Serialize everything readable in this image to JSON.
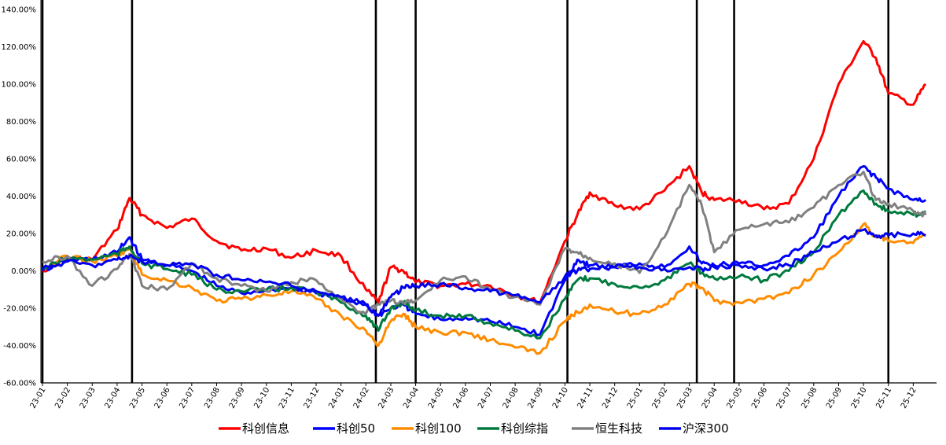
{
  "chart_data": {
    "type": "line",
    "x_ticks": [
      "23-01",
      "23-02",
      "23-03",
      "23-04",
      "23-05",
      "23-06",
      "23-07",
      "23-08",
      "23-09",
      "23-10",
      "23-11",
      "23-12",
      "24-01",
      "24-02",
      "24-03",
      "24-04",
      "24-05",
      "24-06",
      "24-07",
      "24-08",
      "24-09",
      "24-10",
      "24-11",
      "24-12",
      "25-01",
      "25-02",
      "25-03",
      "25-04",
      "25-05",
      "25-06",
      "25-07",
      "25-08",
      "25-09",
      "25-10",
      "25-11",
      "25-12"
    ],
    "y_ticks": [
      "140.00%",
      "120.00%",
      "100.00%",
      "80.00%",
      "60.00%",
      "40.00%",
      "20.00%",
      "0.00%",
      "-20.00%",
      "-40.00%",
      "-60.00%"
    ],
    "ylim": [
      -60,
      140
    ],
    "y_unit": "%",
    "grid": false,
    "legend_position": "bottom",
    "markers": {
      "type": "vertical-lines",
      "x": [
        "23-01",
        "23-04",
        "24-02",
        "24-03",
        "24-09",
        "25-03",
        "25-04",
        "25-10"
      ],
      "color": "#000000"
    },
    "series": [
      {
        "name": "科创信息",
        "color": "#FF0000",
        "points": [
          [
            "23-01",
            0
          ],
          [
            "23-02",
            7
          ],
          [
            "23-03",
            6
          ],
          [
            "23-04",
            22
          ],
          [
            "23-04",
            39
          ],
          [
            "23-05",
            30
          ],
          [
            "23-06",
            23
          ],
          [
            "23-07",
            28
          ],
          [
            "23-08",
            16
          ],
          [
            "23-09",
            11
          ],
          [
            "23-10",
            12
          ],
          [
            "23-11",
            7
          ],
          [
            "23-12",
            11
          ],
          [
            "24-01",
            8
          ],
          [
            "24-02",
            -10
          ],
          [
            "24-02",
            -17
          ],
          [
            "24-03",
            2
          ],
          [
            "24-03",
            0
          ],
          [
            "24-04",
            -6
          ],
          [
            "24-05",
            -8
          ],
          [
            "24-06",
            -7
          ],
          [
            "24-07",
            -8
          ],
          [
            "24-08",
            -13
          ],
          [
            "24-09",
            -17
          ],
          [
            "24-10",
            16
          ],
          [
            "24-10",
            30
          ],
          [
            "24-11",
            42
          ],
          [
            "24-12",
            35
          ],
          [
            "25-01",
            33
          ],
          [
            "25-02",
            43
          ],
          [
            "25-03",
            56
          ],
          [
            "25-03",
            42
          ],
          [
            "25-04",
            38
          ],
          [
            "25-05",
            38
          ],
          [
            "25-06",
            33
          ],
          [
            "25-07",
            36
          ],
          [
            "25-08",
            60
          ],
          [
            "25-09",
            100
          ],
          [
            "25-10",
            123
          ],
          [
            "25-10",
            114
          ],
          [
            "25-11",
            95
          ],
          [
            "25-12",
            89
          ],
          [
            "25-12",
            100
          ]
        ]
      },
      {
        "name": "科创50",
        "color": "#0000FF",
        "points": [
          [
            "23-01",
            0
          ],
          [
            "23-02",
            6
          ],
          [
            "23-03",
            6
          ],
          [
            "23-04",
            10
          ],
          [
            "23-04",
            18
          ],
          [
            "23-05",
            6
          ],
          [
            "23-06",
            3
          ],
          [
            "23-07",
            0
          ],
          [
            "23-08",
            -8
          ],
          [
            "23-09",
            -12
          ],
          [
            "23-10",
            -10
          ],
          [
            "23-11",
            -9
          ],
          [
            "23-12",
            -12
          ],
          [
            "24-01",
            -15
          ],
          [
            "24-02",
            -18
          ],
          [
            "24-02",
            -24
          ],
          [
            "24-03",
            -20
          ],
          [
            "24-03",
            -18
          ],
          [
            "24-04",
            -23
          ],
          [
            "24-05",
            -26
          ],
          [
            "24-06",
            -25
          ],
          [
            "24-07",
            -27
          ],
          [
            "24-08",
            -30
          ],
          [
            "24-09",
            -34
          ],
          [
            "24-10",
            -5
          ],
          [
            "24-10",
            6
          ],
          [
            "24-11",
            3
          ],
          [
            "24-12",
            2
          ],
          [
            "25-01",
            4
          ],
          [
            "25-02",
            2
          ],
          [
            "25-03",
            13
          ],
          [
            "25-03",
            4
          ],
          [
            "25-04",
            3
          ],
          [
            "25-05",
            4
          ],
          [
            "25-06",
            3
          ],
          [
            "25-07",
            8
          ],
          [
            "25-08",
            18
          ],
          [
            "25-09",
            40
          ],
          [
            "25-10",
            56
          ],
          [
            "25-10",
            50
          ],
          [
            "25-11",
            44
          ],
          [
            "25-12",
            38
          ],
          [
            "25-12",
            38
          ]
        ]
      },
      {
        "name": "科创100",
        "color": "#FF8C00",
        "points": [
          [
            "23-01",
            1
          ],
          [
            "23-02",
            8
          ],
          [
            "23-03",
            5
          ],
          [
            "23-04",
            8
          ],
          [
            "23-04",
            12
          ],
          [
            "23-05",
            -2
          ],
          [
            "23-06",
            -5
          ],
          [
            "23-07",
            -9
          ],
          [
            "23-08",
            -16
          ],
          [
            "23-09",
            -15
          ],
          [
            "23-10",
            -13
          ],
          [
            "23-11",
            -11
          ],
          [
            "23-12",
            -15
          ],
          [
            "24-01",
            -24
          ],
          [
            "24-02",
            -32
          ],
          [
            "24-02",
            -40
          ],
          [
            "24-03",
            -27
          ],
          [
            "24-03",
            -23
          ],
          [
            "24-04",
            -30
          ],
          [
            "24-05",
            -33
          ],
          [
            "24-06",
            -33
          ],
          [
            "24-07",
            -37
          ],
          [
            "24-08",
            -41
          ],
          [
            "24-09",
            -44
          ],
          [
            "24-10",
            -27
          ],
          [
            "24-10",
            -22
          ],
          [
            "24-11",
            -18
          ],
          [
            "24-12",
            -22
          ],
          [
            "25-01",
            -23
          ],
          [
            "25-02",
            -18
          ],
          [
            "25-03",
            -7
          ],
          [
            "25-03",
            -9
          ],
          [
            "25-04",
            -16
          ],
          [
            "25-05",
            -17
          ],
          [
            "25-06",
            -15
          ],
          [
            "25-07",
            -12
          ],
          [
            "25-08",
            -2
          ],
          [
            "25-09",
            10
          ],
          [
            "25-10",
            25
          ],
          [
            "25-10",
            18
          ],
          [
            "25-11",
            16
          ],
          [
            "25-12",
            15
          ],
          [
            "25-12",
            19
          ]
        ]
      },
      {
        "name": "科创综指",
        "color": "#007A3D",
        "points": [
          [
            "23-01",
            1
          ],
          [
            "23-02",
            7
          ],
          [
            "23-03",
            6
          ],
          [
            "23-04",
            9
          ],
          [
            "23-04",
            13
          ],
          [
            "23-05",
            4
          ],
          [
            "23-06",
            1
          ],
          [
            "23-07",
            -2
          ],
          [
            "23-08",
            -10
          ],
          [
            "23-09",
            -11
          ],
          [
            "23-10",
            -10
          ],
          [
            "23-11",
            -9
          ],
          [
            "23-12",
            -11
          ],
          [
            "24-01",
            -17
          ],
          [
            "24-02",
            -24
          ],
          [
            "24-02",
            -32
          ],
          [
            "24-03",
            -20
          ],
          [
            "24-03",
            -17
          ],
          [
            "24-04",
            -21
          ],
          [
            "24-05",
            -24
          ],
          [
            "24-06",
            -24
          ],
          [
            "24-07",
            -28
          ],
          [
            "24-08",
            -32
          ],
          [
            "24-09",
            -36
          ],
          [
            "24-10",
            -15
          ],
          [
            "24-10",
            -5
          ],
          [
            "24-11",
            -4
          ],
          [
            "24-12",
            -7
          ],
          [
            "25-01",
            -9
          ],
          [
            "25-02",
            -5
          ],
          [
            "25-03",
            4
          ],
          [
            "25-03",
            -1
          ],
          [
            "25-04",
            -4
          ],
          [
            "25-05",
            -3
          ],
          [
            "25-06",
            -5
          ],
          [
            "25-07",
            0
          ],
          [
            "25-08",
            10
          ],
          [
            "25-09",
            30
          ],
          [
            "25-10",
            43
          ],
          [
            "25-10",
            36
          ],
          [
            "25-11",
            32
          ],
          [
            "25-12",
            30
          ],
          [
            "25-12",
            32
          ]
        ]
      },
      {
        "name": "恒生科技",
        "color": "#808080",
        "points": [
          [
            "23-01",
            5
          ],
          [
            "23-02",
            8
          ],
          [
            "23-03",
            -8
          ],
          [
            "23-04",
            1
          ],
          [
            "23-04",
            9
          ],
          [
            "23-05",
            -8
          ],
          [
            "23-06",
            -10
          ],
          [
            "23-07",
            4
          ],
          [
            "23-08",
            -4
          ],
          [
            "23-09",
            -8
          ],
          [
            "23-10",
            -11
          ],
          [
            "23-11",
            -6
          ],
          [
            "23-12",
            -5
          ],
          [
            "24-01",
            -15
          ],
          [
            "24-02",
            -23
          ],
          [
            "24-02",
            -18
          ],
          [
            "24-03",
            -16
          ],
          [
            "24-03",
            -17
          ],
          [
            "24-04",
            -16
          ],
          [
            "24-05",
            -5
          ],
          [
            "24-06",
            -3
          ],
          [
            "24-07",
            -10
          ],
          [
            "24-08",
            -14
          ],
          [
            "24-09",
            -18
          ],
          [
            "24-10",
            12
          ],
          [
            "24-10",
            10
          ],
          [
            "24-11",
            7
          ],
          [
            "24-12",
            4
          ],
          [
            "25-01",
            -1
          ],
          [
            "25-02",
            18
          ],
          [
            "25-03",
            46
          ],
          [
            "25-03",
            35
          ],
          [
            "25-04",
            10
          ],
          [
            "25-05",
            22
          ],
          [
            "25-06",
            25
          ],
          [
            "25-07",
            26
          ],
          [
            "25-08",
            34
          ],
          [
            "25-09",
            46
          ],
          [
            "25-10",
            53
          ],
          [
            "25-10",
            38
          ],
          [
            "25-11",
            36
          ],
          [
            "25-12",
            32
          ],
          [
            "25-12",
            30
          ]
        ]
      },
      {
        "name": "沪深300",
        "color": "#0000EE",
        "points": [
          [
            "23-01",
            1
          ],
          [
            "23-02",
            5
          ],
          [
            "23-03",
            3
          ],
          [
            "23-04",
            6
          ],
          [
            "23-04",
            8
          ],
          [
            "23-05",
            5
          ],
          [
            "23-06",
            3
          ],
          [
            "23-07",
            4
          ],
          [
            "23-08",
            -2
          ],
          [
            "23-09",
            -5
          ],
          [
            "23-10",
            -6
          ],
          [
            "23-11",
            -8
          ],
          [
            "23-12",
            -11
          ],
          [
            "24-01",
            -14
          ],
          [
            "24-02",
            -18
          ],
          [
            "24-02",
            -24
          ],
          [
            "24-03",
            -14
          ],
          [
            "24-03",
            -9
          ],
          [
            "24-04",
            -8
          ],
          [
            "24-05",
            -7
          ],
          [
            "24-06",
            -9
          ],
          [
            "24-07",
            -11
          ],
          [
            "24-08",
            -13
          ],
          [
            "24-09",
            -17
          ],
          [
            "24-10",
            -3
          ],
          [
            "24-10",
            0
          ],
          [
            "24-11",
            1
          ],
          [
            "24-12",
            2
          ],
          [
            "25-01",
            2
          ],
          [
            "25-02",
            1
          ],
          [
            "25-03",
            2
          ],
          [
            "25-03",
            1
          ],
          [
            "25-04",
            2
          ],
          [
            "25-05",
            3
          ],
          [
            "25-06",
            1
          ],
          [
            "25-07",
            3
          ],
          [
            "25-08",
            10
          ],
          [
            "25-09",
            16
          ],
          [
            "25-10",
            22
          ],
          [
            "25-10",
            19
          ],
          [
            "25-11",
            19
          ],
          [
            "25-12",
            20
          ],
          [
            "25-12",
            19
          ]
        ]
      }
    ]
  }
}
